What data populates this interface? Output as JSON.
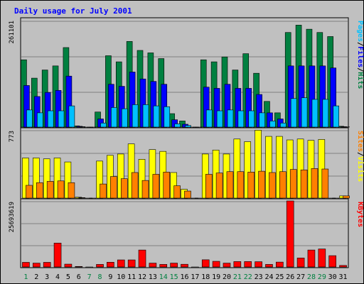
{
  "chart_data": {
    "type": "bar",
    "title": "Daily usage for July 2001",
    "days": [
      "1",
      "2",
      "3",
      "4",
      "5",
      "6",
      "7",
      "8",
      "9",
      "10",
      "11",
      "12",
      "13",
      "14",
      "15",
      "16",
      "17",
      "18",
      "19",
      "20",
      "21",
      "22",
      "23",
      "24",
      "25",
      "26",
      "27",
      "28",
      "29",
      "30",
      "31"
    ],
    "weekend_days": [
      "1",
      "7",
      "8",
      "14",
      "15",
      "21",
      "22",
      "28",
      "29"
    ],
    "panels": [
      {
        "name": "hits-files-pages",
        "scale_label": "261101",
        "ylim": [
          0,
          261101
        ],
        "side_labels": [
          "Pages",
          "/",
          "Files",
          "/",
          "Hits"
        ],
        "side_label_colors": [
          "#00c0ff",
          "#000000",
          "#0000ff",
          "#000000",
          "#008040"
        ],
        "series": [
          {
            "name": "Hits",
            "color": "#008040",
            "values": [
              165000,
              120000,
              140000,
              150000,
              195000,
              3000,
              0,
              37000,
              175000,
              160000,
              210000,
              188000,
              182000,
              168000,
              33000,
              15000,
              0,
              165000,
              160000,
              172000,
              140000,
              180000,
              132000,
              63000,
              35000,
              232000,
              250000,
              240000,
              232000,
              222000,
              2000
            ]
          },
          {
            "name": "Files",
            "color": "#0000ff",
            "values": [
              102000,
              75000,
              85000,
              90000,
              125000,
              2000,
              0,
              20000,
              105000,
              100000,
              135000,
              118000,
              112000,
              105000,
              18000,
              7000,
              0,
              98000,
              95000,
              105000,
              95000,
              95000,
              80000,
              35000,
              20000,
              150000,
              150000,
              150000,
              150000,
              145000,
              1000
            ]
          },
          {
            "name": "Pages",
            "color": "#00c0ff",
            "values": [
              42000,
              35000,
              40000,
              40000,
              52000,
              1000,
              0,
              10000,
              48000,
              45000,
              55000,
              55000,
              52000,
              50000,
              8000,
              4000,
              0,
              42000,
              40000,
              42000,
              40000,
              40000,
              35000,
              15000,
              10000,
              70000,
              72000,
              68000,
              68000,
              52000,
              500
            ]
          }
        ]
      },
      {
        "name": "visits-sites",
        "scale_label": "773",
        "ylim": [
          0,
          773
        ],
        "side_labels": [
          "Sites",
          "/",
          "Visits"
        ],
        "side_label_colors": [
          "#ff8000",
          "#000000",
          "#ffff00"
        ],
        "series": [
          {
            "name": "Visits",
            "color": "#ffff00",
            "values": [
              455,
              455,
              445,
              455,
              410,
              10,
              0,
              420,
              485,
              500,
              615,
              440,
              550,
              530,
              290,
              100,
              0,
              500,
              545,
              500,
              670,
              640,
              770,
              700,
              700,
              660,
              670,
              655,
              665,
              0,
              25
            ]
          },
          {
            "name": "Sites",
            "color": "#ff8000",
            "values": [
              145,
              175,
              190,
              195,
              175,
              5,
              0,
              160,
              245,
              220,
              290,
              200,
              270,
              295,
              140,
              80,
              0,
              270,
              285,
              300,
              300,
              295,
              305,
              290,
              300,
              325,
              320,
              335,
              330,
              0,
              25
            ]
          }
        ]
      },
      {
        "name": "kbytes",
        "scale_label": "25693619",
        "ylim": [
          0,
          25693619
        ],
        "side_labels": [
          "KBytes"
        ],
        "side_label_colors": [
          "#ff0000"
        ],
        "series": [
          {
            "name": "KBytes",
            "color": "#ff0000",
            "values": [
              1800000,
              1500000,
              1800000,
              9300000,
              1100000,
              200000,
              0,
              1000000,
              1850000,
              2750000,
              2750000,
              6600000,
              1500000,
              1000000,
              1500000,
              1050000,
              0,
              2800000,
              2200000,
              1500000,
              2100000,
              2100000,
              2050000,
              1000000,
              1900000,
              25693619,
              3500000,
              6600000,
              7000000,
              4400000,
              600000
            ]
          }
        ]
      }
    ]
  }
}
